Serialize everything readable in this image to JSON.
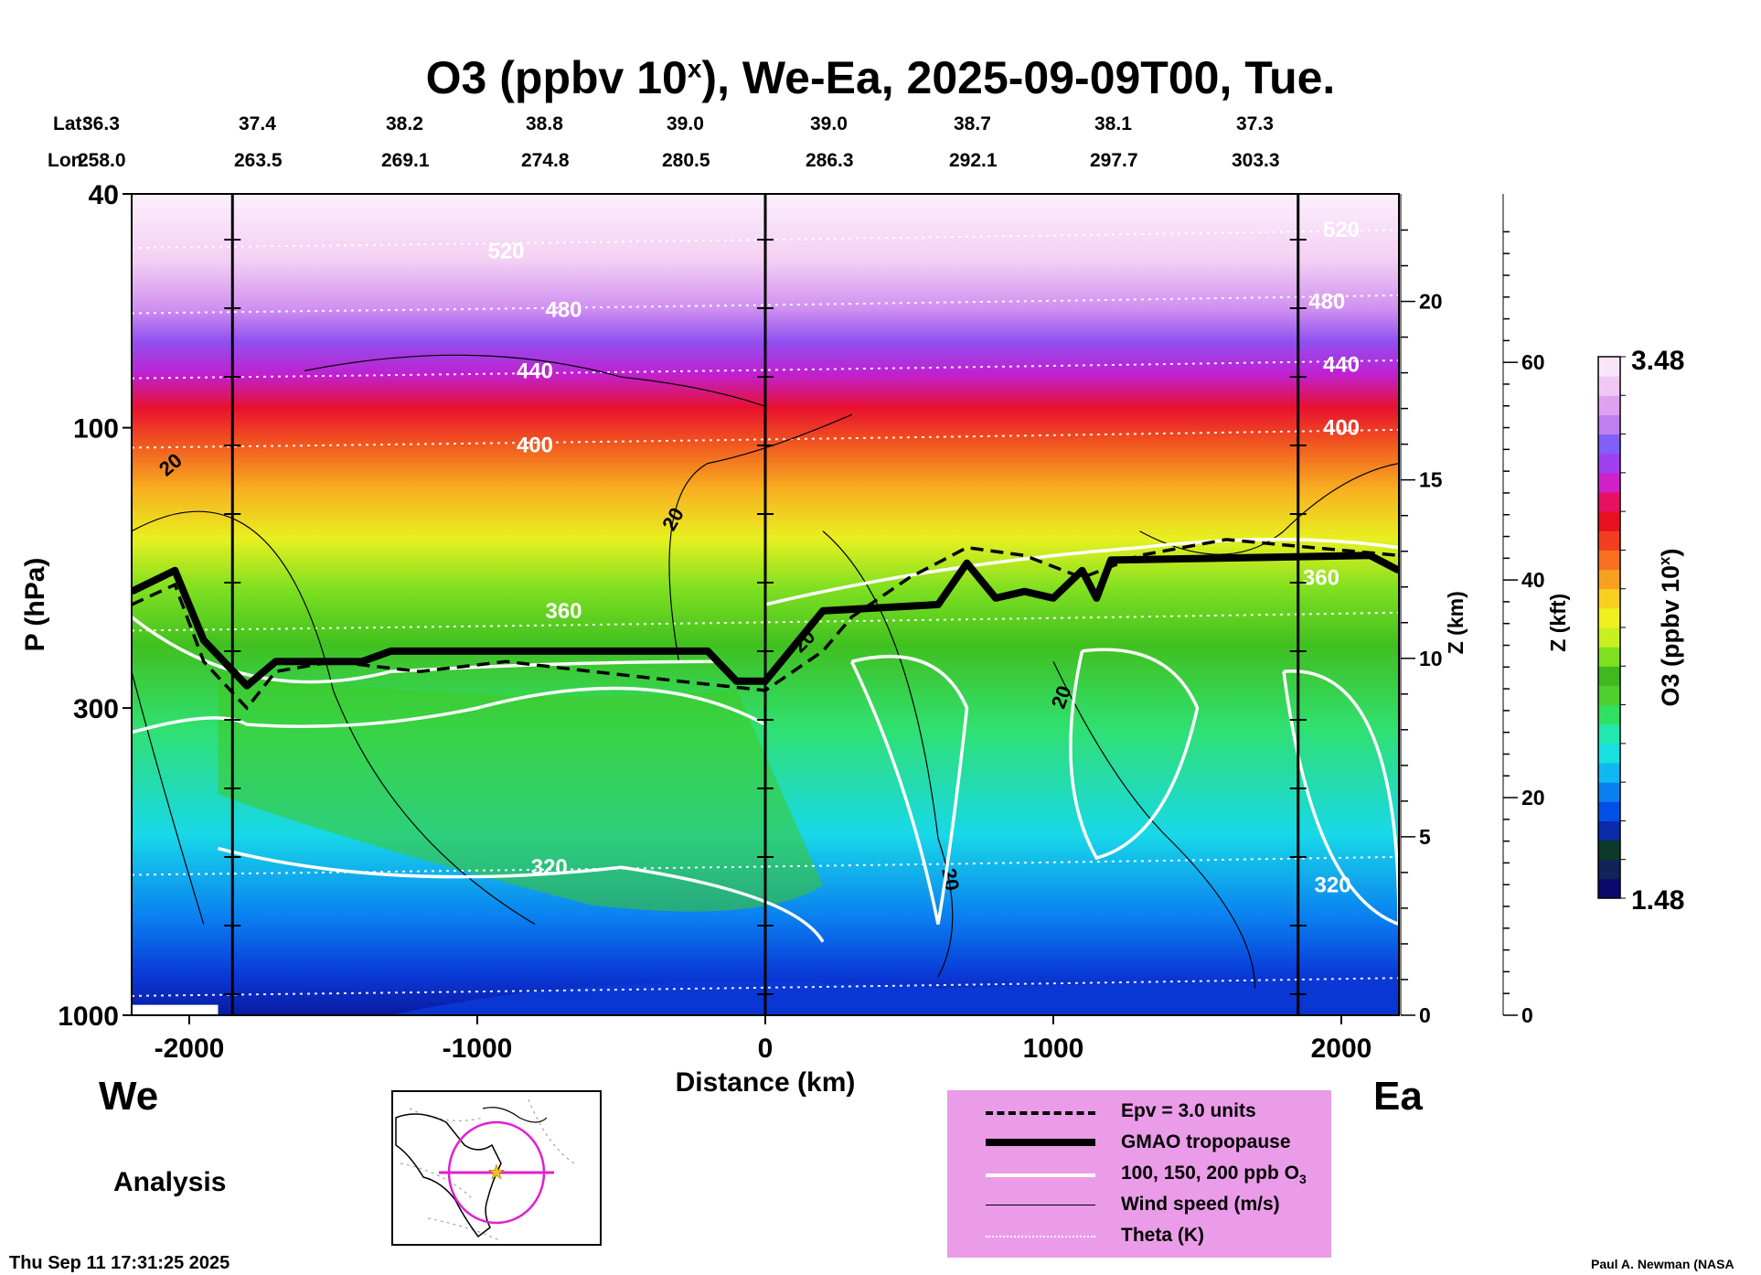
{
  "chart_data": {
    "type": "heatmap",
    "title": "O3 (ppbv 10",
    "title_exp": "x",
    "title_rest": "), We-Ea, 2025-09-09T00, Tue.",
    "xlabel": "Distance (km)",
    "ylabel": "P (hPa)",
    "xlim": [
      -2200,
      2200
    ],
    "ylim_hpa": [
      1000,
      40
    ],
    "x_ticks": [
      "-2000",
      "-1000",
      "0",
      "1000",
      "2000"
    ],
    "x_tick_values": [
      -2000,
      -1000,
      0,
      1000,
      2000
    ],
    "y_ticks": [
      "40",
      "100",
      "300",
      "1000"
    ],
    "y_tick_values": [
      40,
      100,
      300,
      1000
    ],
    "z_km_label": "Z (km)",
    "z_km_ticks": [
      "0",
      "5",
      "10",
      "15",
      "20"
    ],
    "z_km_values": [
      0,
      5,
      10,
      15,
      20
    ],
    "z_kft_label": "Z (kft)",
    "z_kft_ticks": [
      "0",
      "20",
      "40",
      "60"
    ],
    "z_kft_values": [
      0,
      20,
      40,
      60
    ],
    "lat_label": "Lat:",
    "lon_label": "Lon:",
    "lat": [
      "36.3",
      "37.4",
      "38.2",
      "38.8",
      "39.0",
      "39.0",
      "38.7",
      "38.1",
      "37.3"
    ],
    "lon": [
      "258.0",
      "263.5",
      "269.1",
      "274.8",
      "280.5",
      "286.3",
      "292.1",
      "297.7",
      "303.3"
    ],
    "vertical_marker_km": [
      -1850,
      0,
      1850
    ],
    "theta_labels": [
      "520",
      "480",
      "440",
      "400",
      "360",
      "320"
    ],
    "wind_labels": [
      "20"
    ],
    "colorbar": {
      "label": "O3 (ppbv 10",
      "label_exp": "x",
      "label_end": ")",
      "max": "3.48",
      "min": "1.48",
      "colors": [
        "#0a0a6e",
        "#12235a",
        "#0d3a28",
        "#0a2aa8",
        "#0050e8",
        "#0a80f0",
        "#10b8f0",
        "#18e0e0",
        "#20e8b0",
        "#30e060",
        "#50d030",
        "#40b820",
        "#80e020",
        "#c8f020",
        "#f0f020",
        "#f8d020",
        "#f8a020",
        "#f87020",
        "#f04020",
        "#e81020",
        "#e81060",
        "#d020c8",
        "#a040f0",
        "#8060f8",
        "#c080f0",
        "#e0a0f0",
        "#f0c8f4",
        "#fae4fa"
      ]
    },
    "tropopause": [
      [
        -2200,
        190
      ],
      [
        -2050,
        175
      ],
      [
        -1950,
        230
      ],
      [
        -1800,
        275
      ],
      [
        -1700,
        250
      ],
      [
        -1400,
        250
      ],
      [
        -1300,
        240
      ],
      [
        -200,
        240
      ],
      [
        -100,
        270
      ],
      [
        0,
        270
      ],
      [
        200,
        205
      ],
      [
        600,
        200
      ],
      [
        700,
        170
      ],
      [
        800,
        195
      ],
      [
        900,
        190
      ],
      [
        1000,
        195
      ],
      [
        1100,
        175
      ],
      [
        1150,
        195
      ],
      [
        1200,
        168
      ],
      [
        2100,
        165
      ],
      [
        2200,
        175
      ]
    ],
    "epv_3": [
      [
        -2200,
        200
      ],
      [
        -2050,
        185
      ],
      [
        -1950,
        250
      ],
      [
        -1800,
        300
      ],
      [
        -1700,
        260
      ],
      [
        -1500,
        250
      ],
      [
        -1200,
        260
      ],
      [
        -900,
        250
      ],
      [
        -600,
        260
      ],
      [
        -300,
        270
      ],
      [
        0,
        280
      ],
      [
        200,
        240
      ],
      [
        300,
        210
      ],
      [
        500,
        180
      ],
      [
        700,
        160
      ],
      [
        900,
        165
      ],
      [
        1100,
        180
      ],
      [
        1300,
        165
      ],
      [
        1600,
        155
      ],
      [
        1900,
        160
      ],
      [
        2200,
        165
      ]
    ],
    "legend": [
      {
        "label": "Epv = 3.0 units",
        "style": "dashed"
      },
      {
        "label": "GMAO tropopause",
        "style": "thick"
      },
      {
        "label": "100, 150, 200 ppb O",
        "sub": "3",
        "style": "white"
      },
      {
        "label": "Wind speed (m/s)",
        "style": "thin"
      },
      {
        "label": "Theta (K)",
        "style": "dotted"
      }
    ],
    "west_label": "We",
    "east_label": "Ea",
    "analysis_label": "Analysis",
    "timestamp": "Thu Sep 11 17:31:25 2025",
    "credit": "Paul A. Newman (NASA"
  }
}
